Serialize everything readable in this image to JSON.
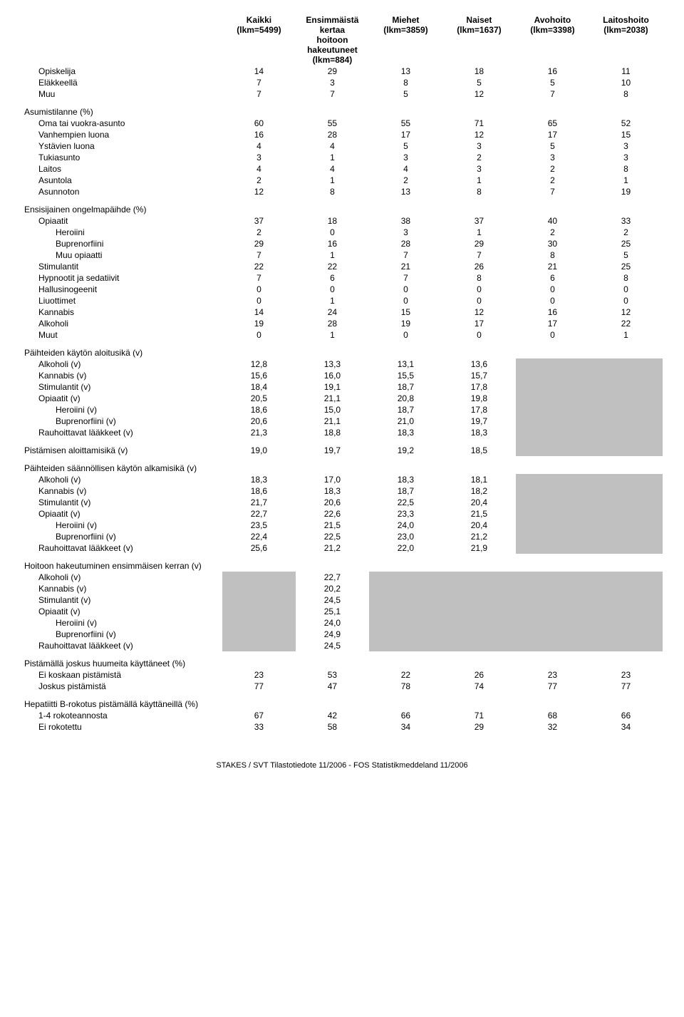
{
  "headers": {
    "c1a": "Kaikki",
    "c1b": "(lkm=5499)",
    "c2a": "Ensimmäistä kertaa",
    "c2b": "hoitoon hakeutuneet",
    "c2c": "(lkm=884)",
    "c3a": "Miehet",
    "c3b": "(lkm=3859)",
    "c4a": "Naiset",
    "c4b": "(lkm=1637)",
    "c5a": "Avohoito",
    "c5b": "(lkm=3398)",
    "c6a": "Laitoshoito",
    "c6b": "(lkm=2038)"
  },
  "sections": {
    "s0_rows": [
      {
        "label": "Opiskelija",
        "v": [
          "14",
          "29",
          "13",
          "18",
          "16",
          "11"
        ]
      },
      {
        "label": "Eläkkeellä",
        "v": [
          "7",
          "3",
          "8",
          "5",
          "5",
          "10"
        ]
      },
      {
        "label": "Muu",
        "v": [
          "7",
          "7",
          "5",
          "12",
          "7",
          "8"
        ]
      }
    ],
    "s1_title": "Asumistilanne (%)",
    "s1_rows": [
      {
        "label": "Oma tai vuokra-asunto",
        "v": [
          "60",
          "55",
          "55",
          "71",
          "65",
          "52"
        ]
      },
      {
        "label": "Vanhempien luona",
        "v": [
          "16",
          "28",
          "17",
          "12",
          "17",
          "15"
        ]
      },
      {
        "label": "Ystävien luona",
        "v": [
          "4",
          "4",
          "5",
          "3",
          "5",
          "3"
        ]
      },
      {
        "label": "Tukiasunto",
        "v": [
          "3",
          "1",
          "3",
          "2",
          "3",
          "3"
        ]
      },
      {
        "label": "Laitos",
        "v": [
          "4",
          "4",
          "4",
          "3",
          "2",
          "8"
        ]
      },
      {
        "label": "Asuntola",
        "v": [
          "2",
          "1",
          "2",
          "1",
          "2",
          "1"
        ]
      },
      {
        "label": "Asunnoton",
        "v": [
          "12",
          "8",
          "13",
          "8",
          "7",
          "19"
        ]
      }
    ],
    "s2_title": "Ensisijainen ongelmapäihde (%)",
    "s2_rows": [
      {
        "label": "Opiaatit",
        "v": [
          "37",
          "18",
          "38",
          "37",
          "40",
          "33"
        ]
      },
      {
        "label": "Heroiini",
        "sub": true,
        "v": [
          "2",
          "0",
          "3",
          "1",
          "2",
          "2"
        ]
      },
      {
        "label": "Buprenorfiini",
        "sub": true,
        "v": [
          "29",
          "16",
          "28",
          "29",
          "30",
          "25"
        ]
      },
      {
        "label": "Muu opiaatti",
        "sub": true,
        "v": [
          "7",
          "1",
          "7",
          "7",
          "8",
          "5"
        ]
      },
      {
        "label": "Stimulantit",
        "v": [
          "22",
          "22",
          "21",
          "26",
          "21",
          "25"
        ]
      },
      {
        "label": "Hypnootit ja sedatiivit",
        "v": [
          "7",
          "6",
          "7",
          "8",
          "6",
          "8"
        ]
      },
      {
        "label": "Hallusinogeenit",
        "v": [
          "0",
          "0",
          "0",
          "0",
          "0",
          "0"
        ]
      },
      {
        "label": "Liuottimet",
        "v": [
          "0",
          "1",
          "0",
          "0",
          "0",
          "0"
        ]
      },
      {
        "label": "Kannabis",
        "v": [
          "14",
          "24",
          "15",
          "12",
          "16",
          "12"
        ]
      },
      {
        "label": "Alkoholi",
        "v": [
          "19",
          "28",
          "19",
          "17",
          "17",
          "22"
        ]
      },
      {
        "label": "Muut",
        "v": [
          "0",
          "1",
          "0",
          "0",
          "0",
          "1"
        ]
      }
    ],
    "s3_title": "Päihteiden käytön aloitusikä (v)",
    "s3_rows": [
      {
        "label": "Alkoholi (v)",
        "v": [
          "12,8",
          "13,3",
          "13,1",
          "13,6"
        ]
      },
      {
        "label": "Kannabis (v)",
        "v": [
          "15,6",
          "16,0",
          "15,5",
          "15,7"
        ]
      },
      {
        "label": "Stimulantit (v)",
        "v": [
          "18,4",
          "19,1",
          "18,7",
          "17,8"
        ]
      },
      {
        "label": "Opiaatit (v)",
        "v": [
          "20,5",
          "21,1",
          "20,8",
          "19,8"
        ]
      },
      {
        "label": "Heroiini (v)",
        "sub": true,
        "v": [
          "18,6",
          "15,0",
          "18,7",
          "17,8"
        ]
      },
      {
        "label": "Buprenorfiini (v)",
        "sub": true,
        "v": [
          "20,6",
          "21,1",
          "21,0",
          "19,7"
        ]
      },
      {
        "label": "Rauhoittavat lääkkeet (v)",
        "v": [
          "21,3",
          "18,8",
          "18,3",
          "18,3"
        ]
      }
    ],
    "s4_title": "Pistämisen aloittamisikä (v)",
    "s4_vals": [
      "19,0",
      "19,7",
      "19,2",
      "18,5"
    ],
    "s5_title": "Päihteiden säännöllisen käytön alkamisikä (v)",
    "s5_rows": [
      {
        "label": "Alkoholi (v)",
        "v": [
          "18,3",
          "17,0",
          "18,3",
          "18,1"
        ]
      },
      {
        "label": "Kannabis (v)",
        "v": [
          "18,6",
          "18,3",
          "18,7",
          "18,2"
        ]
      },
      {
        "label": "Stimulantit (v)",
        "v": [
          "21,7",
          "20,6",
          "22,5",
          "20,4"
        ]
      },
      {
        "label": "Opiaatit (v)",
        "v": [
          "22,7",
          "22,6",
          "23,3",
          "21,5"
        ]
      },
      {
        "label": "Heroiini (v)",
        "sub": true,
        "v": [
          "23,5",
          "21,5",
          "24,0",
          "20,4"
        ]
      },
      {
        "label": "Buprenorfiini (v)",
        "sub": true,
        "v": [
          "22,4",
          "22,5",
          "23,0",
          "21,2"
        ]
      },
      {
        "label": "Rauhoittavat lääkkeet (v)",
        "v": [
          "25,6",
          "21,2",
          "22,0",
          "21,9"
        ]
      }
    ],
    "s6_title": "Hoitoon hakeutuminen ensimmäisen kerran (v)",
    "s6_rows": [
      {
        "label": "Alkoholi (v)",
        "v": "22,7"
      },
      {
        "label": "Kannabis (v)",
        "v": "20,2"
      },
      {
        "label": "Stimulantit (v)",
        "v": "24,5"
      },
      {
        "label": "Opiaatit (v)",
        "v": "25,1"
      },
      {
        "label": "Heroiini (v)",
        "sub": true,
        "v": "24,0"
      },
      {
        "label": "Buprenorfiini (v)",
        "sub": true,
        "v": "24,9"
      },
      {
        "label": "Rauhoittavat lääkkeet (v)",
        "v": "24,5"
      }
    ],
    "s7_title": "Pistämällä joskus huumeita käyttäneet (%)",
    "s7_rows": [
      {
        "label": "Ei koskaan pistämistä",
        "v": [
          "23",
          "53",
          "22",
          "26",
          "23",
          "23"
        ]
      },
      {
        "label": "Joskus pistämistä",
        "v": [
          "77",
          "47",
          "78",
          "74",
          "77",
          "77"
        ]
      }
    ],
    "s8_title": "Hepatiitti B-rokotus pistämällä käyttäneillä (%)",
    "s8_rows": [
      {
        "label": "1-4 rokoteannosta",
        "v": [
          "67",
          "42",
          "66",
          "71",
          "68",
          "66"
        ]
      },
      {
        "label": "Ei rokotettu",
        "v": [
          "33",
          "58",
          "34",
          "29",
          "32",
          "34"
        ]
      }
    ]
  },
  "footer": "STAKES / SVT Tilastotiedote 11/2006 - FOS Statistikmeddeland 11/2006"
}
